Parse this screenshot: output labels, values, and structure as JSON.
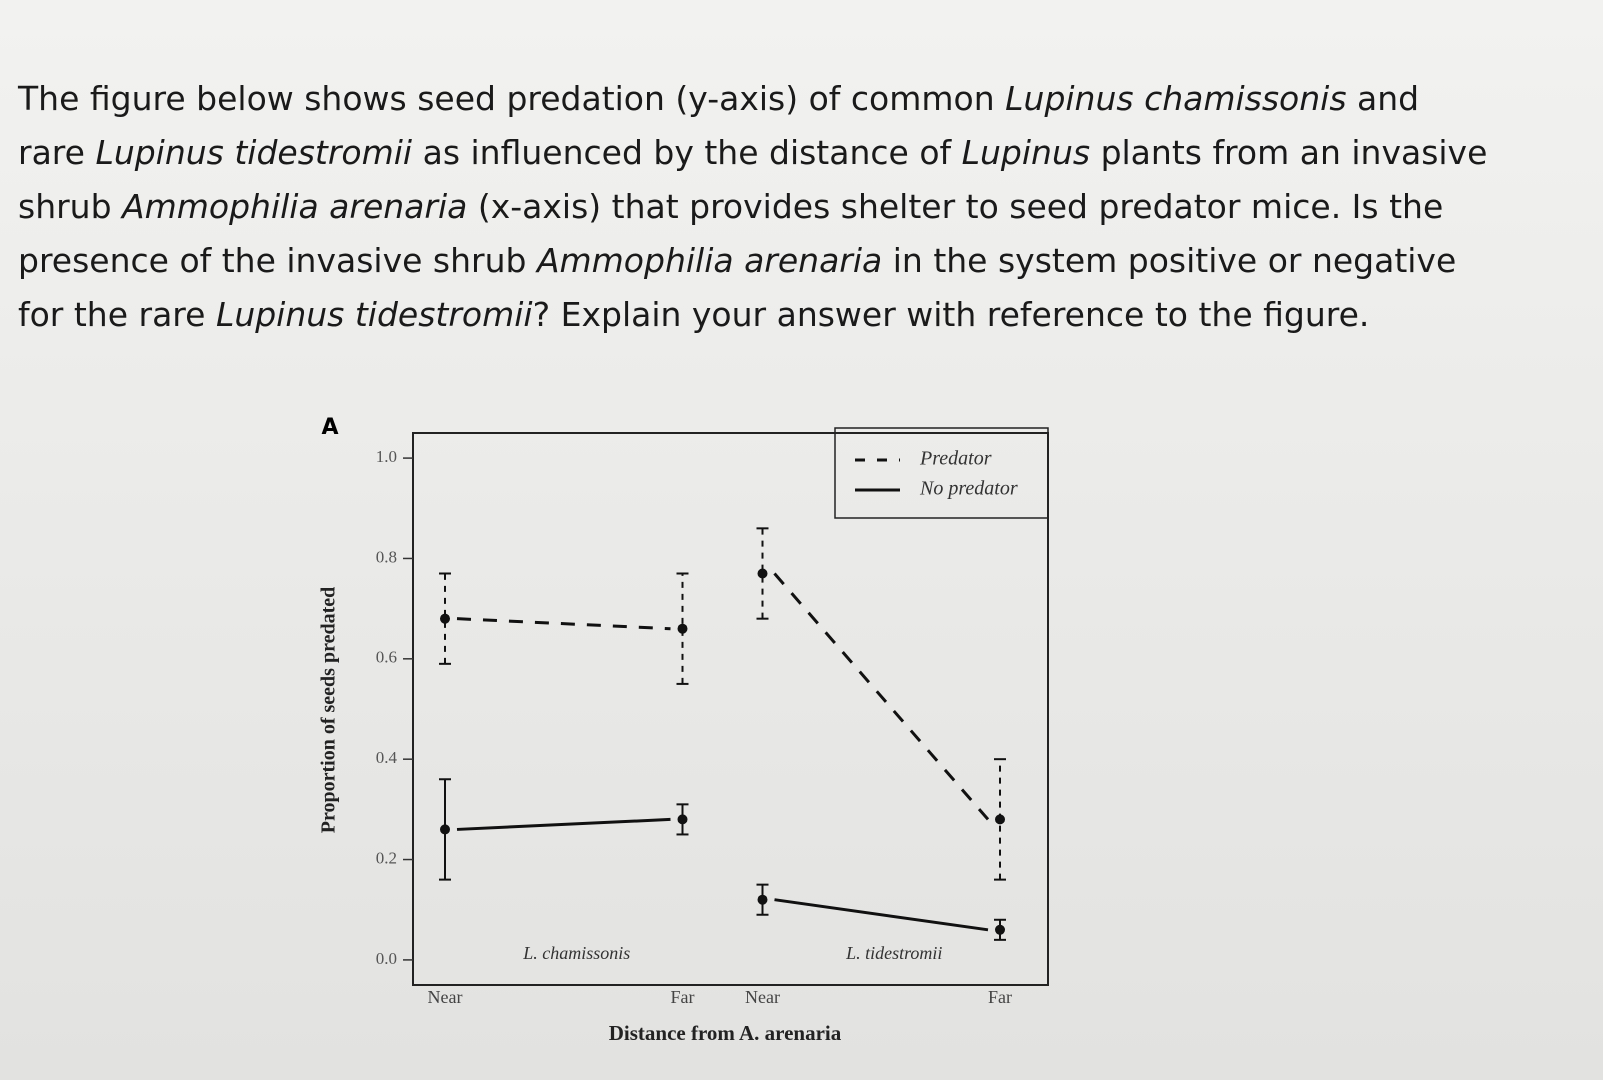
{
  "question_lines": [
    [
      {
        "text": "The figure below shows seed predation (y-axis) of common ",
        "italic": false
      },
      {
        "text": "Lupinus chamissonis",
        "italic": true
      },
      {
        "text": " and",
        "italic": false
      }
    ],
    [
      {
        "text": "rare ",
        "italic": false
      },
      {
        "text": "Lupinus tidestromii",
        "italic": true
      },
      {
        "text": " as influenced by the distance of ",
        "italic": false
      },
      {
        "text": "Lupinus",
        "italic": true
      },
      {
        "text": " plants from an invasive",
        "italic": false
      }
    ],
    [
      {
        "text": "shrub ",
        "italic": false
      },
      {
        "text": "Ammophilia arenaria",
        "italic": true
      },
      {
        "text": " (x-axis) that provides shelter to seed predator mice. Is the",
        "italic": false
      }
    ],
    [
      {
        "text": "presence of the invasive shrub ",
        "italic": false
      },
      {
        "text": "Ammophilia arenaria",
        "italic": true
      },
      {
        "text": " in the system positive or negative",
        "italic": false
      }
    ],
    [
      {
        "text": "for the rare ",
        "italic": false
      },
      {
        "text": "Lupinus tidestromii",
        "italic": true
      },
      {
        "text": "? Explain your answer with reference to the figure.",
        "italic": false
      }
    ]
  ],
  "chart_data": {
    "type": "line",
    "panel_label": "A",
    "y_label": "Proportion of seeds predated",
    "x_label": "Distance from A. arenaria",
    "groups": [
      "L. chamissonis",
      "L. tidestromii"
    ],
    "categories": [
      "Near",
      "Far",
      "Near",
      "Far"
    ],
    "ylim": [
      -0.05,
      1.05
    ],
    "yticks": [
      {
        "value": 0,
        "label": "0.0"
      },
      0.2,
      0.4,
      0.6,
      0.8,
      {
        "value": 1,
        "label": "1.0"
      }
    ],
    "legend": "upper right",
    "series": [
      {
        "name": "Predator",
        "color": "#111111",
        "dashed": true,
        "values": [
          0.68,
          0.66,
          0.77,
          0.28
        ],
        "errors": [
          0.09,
          0.11,
          0.09,
          0.12
        ]
      },
      {
        "name": "No predator",
        "color": "#111111",
        "dashed": false,
        "values": [
          0.26,
          0.28,
          0.12,
          0.06
        ],
        "errors": [
          0.1,
          0.03,
          0.03,
          0.02
        ]
      }
    ]
  }
}
